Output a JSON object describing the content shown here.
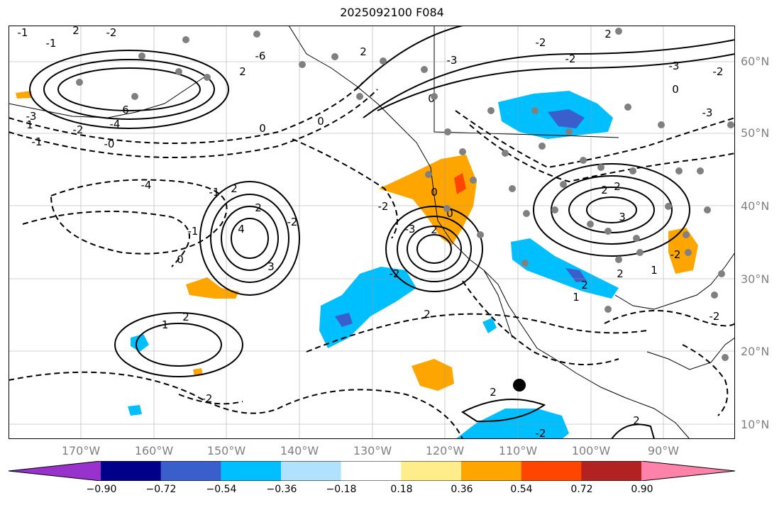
{
  "title": "2025092100 F084",
  "lat_labels": [
    {
      "text": "60°N"
    },
    {
      "text": "50°N"
    },
    {
      "text": "40°N"
    },
    {
      "text": "30°N"
    },
    {
      "text": "20°N"
    },
    {
      "text": "10°N"
    }
  ],
  "lon_labels": [
    {
      "text": "170°W"
    },
    {
      "text": "160°W"
    },
    {
      "text": "150°W"
    },
    {
      "text": "140°W"
    },
    {
      "text": "130°W"
    },
    {
      "text": "120°W"
    },
    {
      "text": "110°W"
    },
    {
      "text": "100°W"
    },
    {
      "text": "90°W"
    }
  ],
  "colorbar": {
    "colors": [
      "#9932cc",
      "#00008b",
      "#3a5fcd",
      "#00bfff",
      "#b0e2ff",
      "#ffffff",
      "#ffec8b",
      "#ffa500",
      "#ff4500",
      "#b22222",
      "#ff82ab"
    ],
    "ticks": [
      "−0.90",
      "−0.72",
      "−0.54",
      "−0.36",
      "−0.18",
      "0.18",
      "0.36",
      "0.54",
      "0.72",
      "0.90"
    ]
  },
  "contour_labels": [
    "-1",
    "2",
    "-2",
    "-1",
    "6",
    "-4",
    "-3",
    "-2",
    "-6",
    "2",
    "2",
    "-3",
    "-2",
    "-2",
    "-4",
    "-1",
    "-1",
    "2",
    "-2",
    "3",
    "2",
    "-3",
    "-3",
    "2",
    "-2",
    "2",
    "2",
    "4",
    "2",
    "-2",
    "3",
    "2",
    "-3",
    "2",
    "2",
    "-2",
    "-2",
    "-2",
    "-2",
    "2",
    "2",
    "2",
    "-2",
    "-1",
    "-1",
    "-0",
    "0",
    "0",
    "0",
    "0",
    "0",
    "0",
    "0",
    "1",
    "1",
    "1"
  ]
}
